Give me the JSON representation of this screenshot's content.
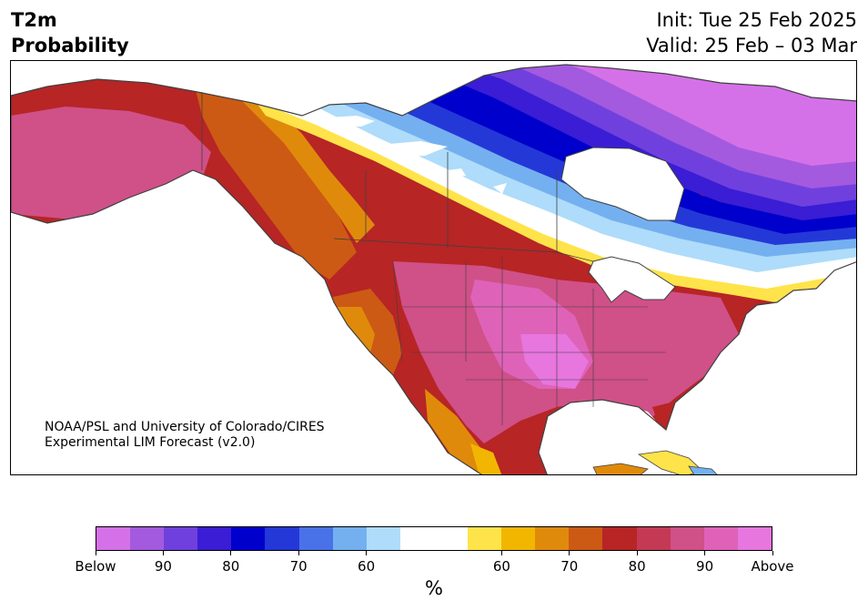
{
  "header": {
    "title_line1": "T2m",
    "title_line2": "Probability",
    "init_text": "Init: Tue 25 Feb 2025",
    "valid_text": "Valid: 25 Feb – 03 Mar"
  },
  "credit": {
    "line1": "NOAA/PSL and University of Colorado/CIRES",
    "line2": "Experimental LIM Forecast (v2.0)"
  },
  "colorbar": {
    "colors": [
      "#d571e8",
      "#a35ade",
      "#7040de",
      "#3a1dd4",
      "#0000cc",
      "#2438d8",
      "#4a72e8",
      "#74b0f0",
      "#aedcfa",
      "#ffffff",
      "#ffffff",
      "#ffe34a",
      "#f2b600",
      "#e08a0c",
      "#cc5a14",
      "#b72525",
      "#c43a55",
      "#d05088",
      "#de63b8",
      "#e776de"
    ],
    "tick_labels": [
      "Below",
      "90",
      "80",
      "70",
      "60",
      "60",
      "70",
      "80",
      "90",
      "Above"
    ],
    "unit": "%"
  },
  "map": {
    "region": "North America",
    "colors": {
      "land_outline": "#404040",
      "water": "#ffffff"
    }
  }
}
